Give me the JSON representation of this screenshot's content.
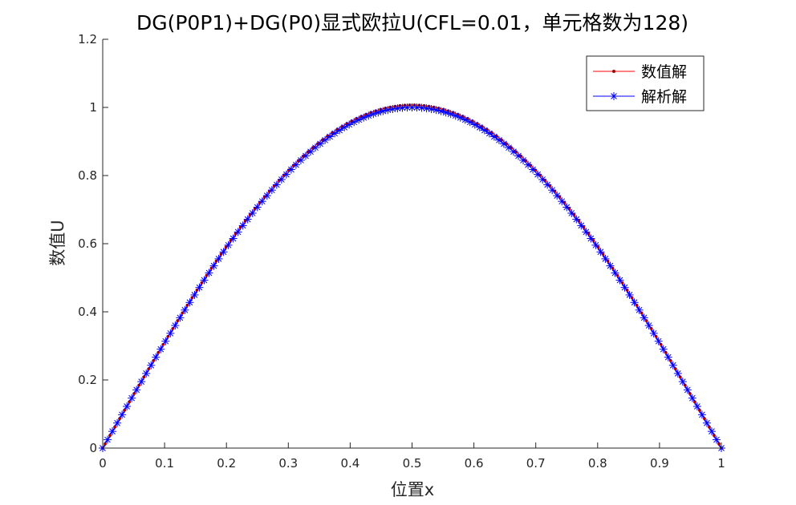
{
  "chart_data": {
    "type": "line",
    "title": "DG(P0P1)+DG(P0)显式欧拉U(CFL=0.01，单元格数为128)",
    "xlabel": "位置x",
    "ylabel": "数值U",
    "xlim": [
      0,
      1
    ],
    "ylim": [
      0,
      1.2
    ],
    "xticks": [
      0,
      0.1,
      0.2,
      0.3,
      0.4,
      0.5,
      0.6,
      0.7,
      0.8,
      0.9,
      1
    ],
    "yticks": [
      0,
      0.2,
      0.4,
      0.6,
      0.8,
      1,
      1.2
    ],
    "xtick_labels": [
      "0",
      "0.1",
      "0.2",
      "0.3",
      "0.4",
      "0.5",
      "0.6",
      "0.7",
      "0.8",
      "0.9",
      "1"
    ],
    "ytick_labels": [
      "0",
      "0.2",
      "0.4",
      "0.6",
      "0.8",
      "1",
      "1.2"
    ],
    "grid": false,
    "legend_position": "top-right",
    "n_cells": 128,
    "series": [
      {
        "name": "数值解",
        "color": "#ff0000",
        "marker_color": "#a00000",
        "marker": "dot",
        "function": "y = 1.007 * sin(pi * x), sampled at the 128 cell centres x = (i + 0.5) / 128, plus the end points x = 0 and x = 1",
        "peak_value": 1.007
      },
      {
        "name": "解析解",
        "color": "#0000ff",
        "marker": "asterisk",
        "function": "y = sin(pi * x), sampled at x = i / 128 for i = 0 … 128",
        "peak_value": 1.0
      }
    ]
  }
}
